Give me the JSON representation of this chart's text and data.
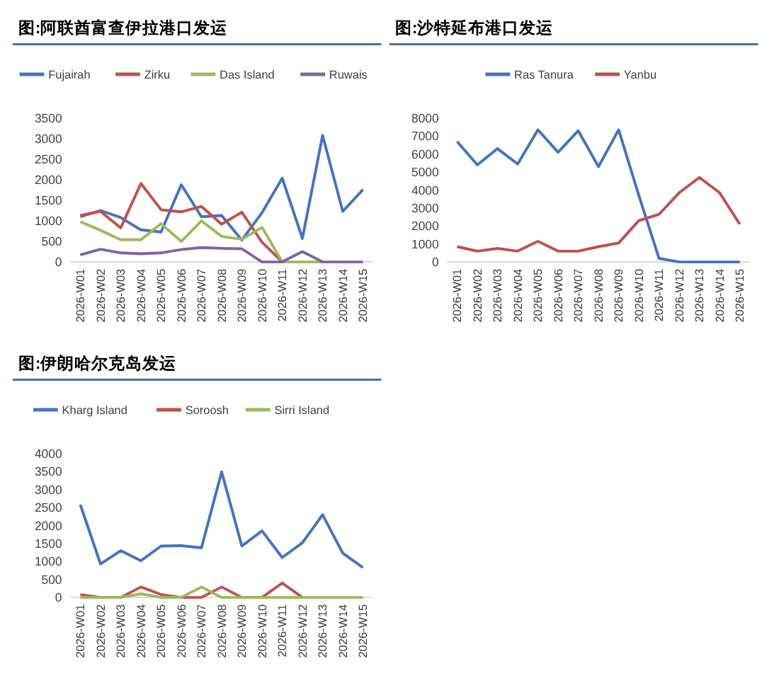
{
  "chart_data": [
    {
      "type": "line",
      "title": "图:阿联酋富查伊拉港口发运",
      "categories": [
        "2026-W01",
        "2026-W02",
        "2026-W03",
        "2026-W04",
        "2026-W05",
        "2026-W06",
        "2026-W07",
        "2026-W08",
        "2026-W09",
        "2026-W10",
        "2026-W11",
        "2026-W12",
        "2026-W13",
        "2026-W14",
        "2026-W15"
      ],
      "ylim": [
        0,
        3500
      ],
      "yticks": [
        0,
        500,
        1000,
        1500,
        2000,
        2500,
        3000,
        3500
      ],
      "grid": false,
      "legend": "top",
      "marker": "none",
      "line_style": "solid",
      "series": [
        {
          "name": "Fujairah",
          "color": "#4472c4",
          "values": [
            1100,
            1250,
            1080,
            780,
            730,
            1880,
            1100,
            1130,
            530,
            1200,
            2040,
            570,
            3080,
            1230,
            1760
          ]
        },
        {
          "name": "Zirku",
          "color": "#c0504d",
          "values": [
            1130,
            1230,
            830,
            1910,
            1270,
            1220,
            1350,
            920,
            1210,
            480,
            0,
            null,
            null,
            null,
            null
          ]
        },
        {
          "name": "Das Island",
          "color": "#9bbb59",
          "values": [
            980,
            770,
            540,
            540,
            930,
            500,
            1000,
            620,
            550,
            840,
            0,
            0,
            0,
            null,
            null
          ]
        },
        {
          "name": "Ruwais",
          "color": "#8064a2",
          "values": [
            170,
            310,
            220,
            200,
            220,
            300,
            350,
            330,
            320,
            0,
            0,
            250,
            0,
            0,
            0
          ]
        }
      ]
    },
    {
      "type": "line",
      "title": "图:沙特延布港口发运",
      "categories": [
        "2026-W01",
        "2026-W02",
        "2026-W03",
        "2026-W04",
        "2026-W05",
        "2026-W06",
        "2026-W07",
        "2026-W08",
        "2026-W09",
        "2026-W10",
        "2026-W11",
        "2026-W12",
        "2026-W13",
        "2026-W14",
        "2026-W15"
      ],
      "ylim": [
        0,
        8000
      ],
      "yticks": [
        0,
        1000,
        2000,
        3000,
        4000,
        5000,
        6000,
        7000,
        8000
      ],
      "grid": false,
      "legend": "top",
      "marker": "none",
      "line_style": "solid",
      "series": [
        {
          "name": "Ras Tanura",
          "color": "#4472c4",
          "values": [
            6700,
            5400,
            6300,
            5450,
            7350,
            6100,
            7300,
            5300,
            7350,
            3700,
            200,
            0,
            0,
            0,
            0
          ]
        },
        {
          "name": "Yanbu",
          "color": "#c0504d",
          "values": [
            850,
            600,
            750,
            600,
            1150,
            600,
            600,
            850,
            1050,
            2300,
            2650,
            3850,
            4700,
            3850,
            2100
          ]
        }
      ]
    },
    {
      "type": "line",
      "title": "图:伊朗哈尔克岛发运",
      "categories": [
        "2026-W01",
        "2026-W02",
        "2026-W03",
        "2026-W04",
        "2026-W05",
        "2026-W06",
        "2026-W07",
        "2026-W08",
        "2026-W09",
        "2026-W10",
        "2026-W11",
        "2026-W12",
        "2026-W13",
        "2026-W14",
        "2026-W15"
      ],
      "ylim": [
        0,
        4000
      ],
      "yticks": [
        0,
        500,
        1000,
        1500,
        2000,
        2500,
        3000,
        3500,
        4000
      ],
      "grid": false,
      "legend": "top",
      "marker": "none",
      "line_style": "solid",
      "series": [
        {
          "name": "Kharg Island",
          "color": "#4472c4",
          "values": [
            2580,
            930,
            1300,
            1020,
            1430,
            1440,
            1380,
            3490,
            1430,
            1850,
            1110,
            1520,
            2300,
            1230,
            830
          ]
        },
        {
          "name": "Soroosh",
          "color": "#c0504d",
          "values": [
            80,
            0,
            0,
            290,
            80,
            0,
            0,
            290,
            0,
            0,
            400,
            0,
            null,
            null,
            null
          ]
        },
        {
          "name": "Sirri Island",
          "color": "#9bbb59",
          "values": [
            0,
            0,
            0,
            100,
            0,
            0,
            290,
            0,
            0,
            0,
            0,
            0,
            0,
            0,
            0
          ]
        }
      ]
    }
  ]
}
